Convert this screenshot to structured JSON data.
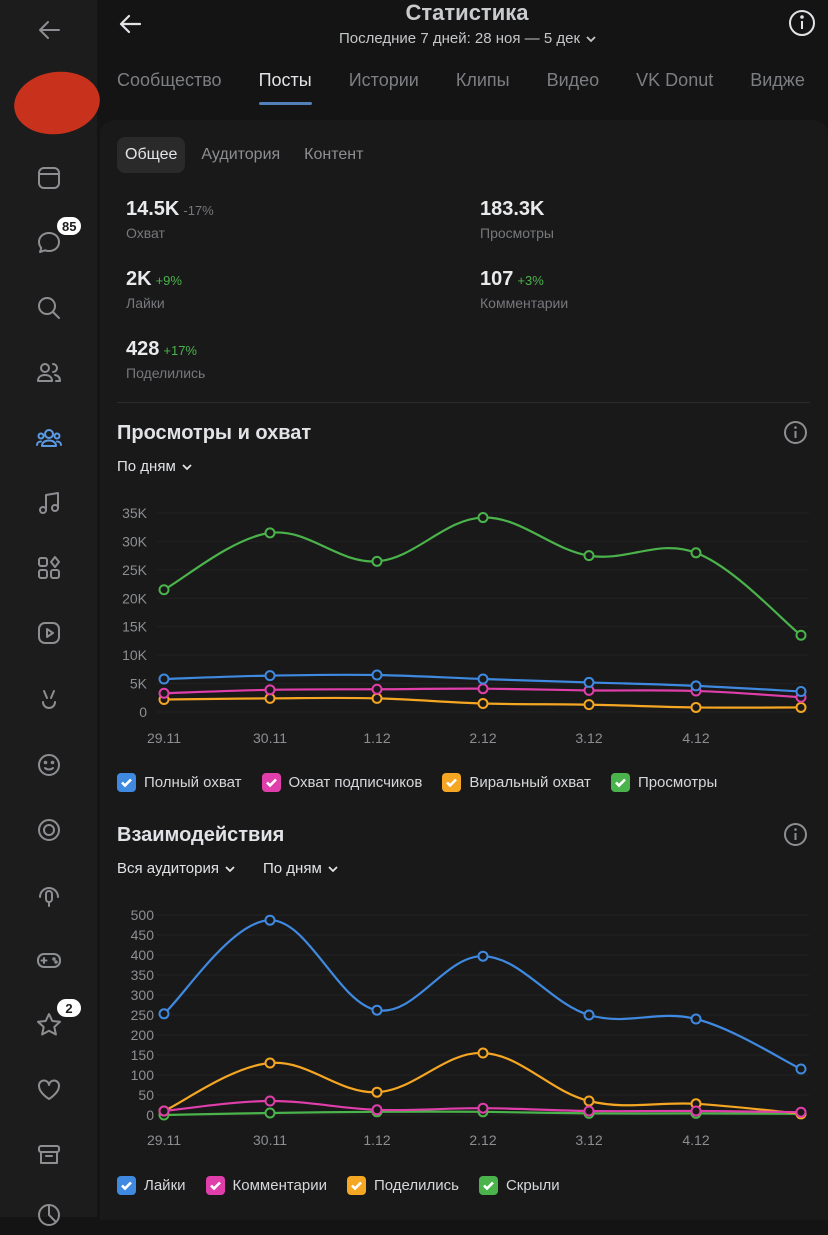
{
  "header": {
    "title": "Статистика",
    "period": "Последние 7 дней: 28 ноя — 5 дек"
  },
  "sidebar": {
    "badges": {
      "messages": "85",
      "favorites": "2"
    }
  },
  "tabs": [
    {
      "label": "Сообщество"
    },
    {
      "label": "Посты",
      "active": true
    },
    {
      "label": "Истории"
    },
    {
      "label": "Клипы"
    },
    {
      "label": "Видео"
    },
    {
      "label": "VK Donut"
    },
    {
      "label": "Видже"
    }
  ],
  "subtabs": [
    {
      "label": "Общее",
      "active": true
    },
    {
      "label": "Аудитория"
    },
    {
      "label": "Контент"
    }
  ],
  "stats": [
    {
      "value": "14.5K",
      "delta": "-17%",
      "label": "Охват",
      "trend": "down"
    },
    {
      "value": "183.3K",
      "delta": "",
      "label": "Просмотры"
    },
    {
      "value": "2K",
      "delta": "+9%",
      "label": "Лайки",
      "trend": "up"
    },
    {
      "value": "107",
      "delta": "+3%",
      "label": "Комментарии",
      "trend": "up"
    },
    {
      "value": "428",
      "delta": "+17%",
      "label": "Поделились",
      "trend": "up"
    }
  ],
  "section1": {
    "title": "Просмотры и охват",
    "period_select": "По дням"
  },
  "section2": {
    "title": "Взаимодействия",
    "audience_select": "Вся аудитория",
    "period_select": "По дням"
  },
  "chart_data": [
    {
      "type": "line",
      "title": "Просмотры и охват",
      "categories": [
        "29.11",
        "30.11",
        "1.12",
        "2.12",
        "3.12",
        "4.12",
        "5.12"
      ],
      "x_tick_labels": [
        "29.11",
        "30.11",
        "1.12",
        "2.12",
        "3.12",
        "4.12"
      ],
      "y_ticks": [
        "0",
        "5K",
        "10K",
        "15K",
        "20K",
        "25K",
        "30K",
        "35K"
      ],
      "ylim": [
        0,
        35000
      ],
      "grid": true,
      "legend": "bottom",
      "series": [
        {
          "name": "Полный охват",
          "color": "#3f8ae0",
          "values": [
            5800,
            6400,
            6500,
            5800,
            5200,
            4600,
            3600
          ]
        },
        {
          "name": "Охват подписчиков",
          "color": "#e03fab",
          "values": [
            3300,
            3900,
            4000,
            4100,
            3800,
            3700,
            2600
          ]
        },
        {
          "name": "Виральный охват",
          "color": "#f5a623",
          "values": [
            2200,
            2400,
            2400,
            1500,
            1300,
            800,
            800
          ]
        },
        {
          "name": "Просмотры",
          "color": "#4bb34b",
          "values": [
            21500,
            31500,
            26500,
            34200,
            27500,
            28000,
            13500
          ]
        }
      ]
    },
    {
      "type": "line",
      "title": "Взаимодействия",
      "categories": [
        "29.11",
        "30.11",
        "1.12",
        "2.12",
        "3.12",
        "4.12",
        "5.12"
      ],
      "x_tick_labels": [
        "29.11",
        "30.11",
        "1.12",
        "2.12",
        "3.12",
        "4.12"
      ],
      "y_ticks": [
        "0",
        "50",
        "100",
        "150",
        "200",
        "250",
        "300",
        "350",
        "400",
        "450",
        "500"
      ],
      "ylim": [
        0,
        500
      ],
      "grid": true,
      "legend": "bottom",
      "series": [
        {
          "name": "Лайки",
          "color": "#3f8ae0",
          "values": [
            253,
            487,
            262,
            397,
            250,
            240,
            115
          ]
        },
        {
          "name": "Комментарии",
          "color": "#e03fab",
          "values": [
            10,
            35,
            13,
            17,
            10,
            10,
            7
          ]
        },
        {
          "name": "Поделились",
          "color": "#f5a623",
          "values": [
            10,
            130,
            57,
            155,
            35,
            28,
            3
          ]
        },
        {
          "name": "Скрыли",
          "color": "#4bb34b",
          "values": [
            0,
            5,
            8,
            8,
            4,
            4,
            3
          ]
        }
      ]
    }
  ]
}
